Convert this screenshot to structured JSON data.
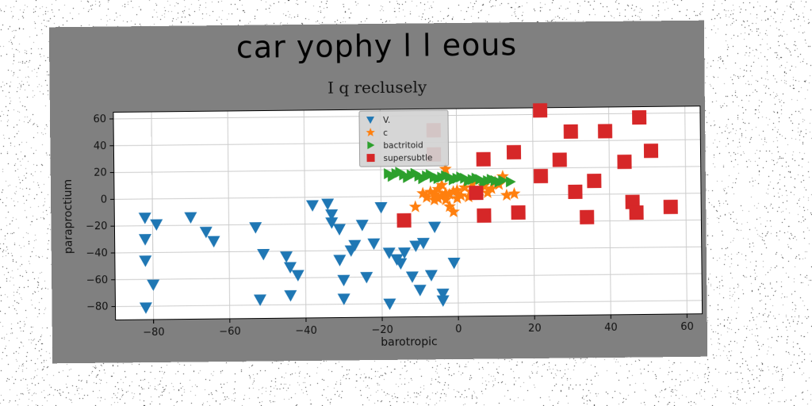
{
  "chart_data": {
    "type": "scatter",
    "title": "car yophy l l eous",
    "subtitle": "I q reclusely",
    "xlabel": "barotropic",
    "ylabel": "paraproctium",
    "xlim": [
      -90,
      64
    ],
    "ylim": [
      -90,
      65
    ],
    "xticks": [
      -80,
      -60,
      -40,
      -20,
      0,
      20,
      40,
      60
    ],
    "yticks": [
      -80,
      -60,
      -40,
      -20,
      0,
      20,
      40,
      60
    ],
    "xtick_labels": [
      "−80",
      "−60",
      "−40",
      "−20",
      "0",
      "20",
      "40",
      "60"
    ],
    "ytick_labels": [
      "−80",
      "−60",
      "−40",
      "−20",
      "0",
      "20",
      "40",
      "60"
    ],
    "grid": true,
    "legend_position": "top-center",
    "series": [
      {
        "name": "V.",
        "marker": "triangle-down",
        "color": "#1f77b4",
        "points": [
          [
            -82,
            -14
          ],
          [
            -79,
            -19
          ],
          [
            -82,
            -30
          ],
          [
            -82,
            -46
          ],
          [
            -80,
            -64
          ],
          [
            -82,
            -81
          ],
          [
            -70,
            -14
          ],
          [
            -66,
            -25
          ],
          [
            -64,
            -32
          ],
          [
            -53,
            -22
          ],
          [
            -52,
            -76
          ],
          [
            -51,
            -42
          ],
          [
            -45,
            -44
          ],
          [
            -44,
            -52
          ],
          [
            -44,
            -73
          ],
          [
            -42,
            -58
          ],
          [
            -38,
            -6
          ],
          [
            -34,
            -5
          ],
          [
            -33,
            -13
          ],
          [
            -33,
            -19
          ],
          [
            -31,
            -24
          ],
          [
            -31,
            -47
          ],
          [
            -30,
            -62
          ],
          [
            -30,
            -76
          ],
          [
            -28,
            -40
          ],
          [
            -27,
            -36
          ],
          [
            -25,
            -21
          ],
          [
            -24,
            -60
          ],
          [
            -22,
            -35
          ],
          [
            -20,
            -8
          ],
          [
            -18,
            -42
          ],
          [
            -18,
            -80
          ],
          [
            -16,
            -47
          ],
          [
            -15,
            -50
          ],
          [
            -14,
            -42
          ],
          [
            -12,
            -60
          ],
          [
            -11,
            -37
          ],
          [
            -10,
            -70
          ],
          [
            -9,
            -35
          ],
          [
            -7,
            -59
          ],
          [
            -6,
            -23
          ],
          [
            -4,
            -73
          ],
          [
            -4,
            -78
          ],
          [
            -1,
            -50
          ]
        ]
      },
      {
        "name": "c",
        "marker": "star",
        "color": "#ff7f0e",
        "points": [
          [
            -11,
            -8
          ],
          [
            -9,
            2
          ],
          [
            -8,
            -1
          ],
          [
            -7,
            3
          ],
          [
            -6,
            1
          ],
          [
            -6,
            -3
          ],
          [
            -5,
            5
          ],
          [
            -5,
            -2
          ],
          [
            -4,
            0
          ],
          [
            -4,
            8
          ],
          [
            -3,
            2
          ],
          [
            -3,
            -3
          ],
          [
            -2,
            1
          ],
          [
            -2,
            -8
          ],
          [
            -1,
            3
          ],
          [
            -1,
            -12
          ],
          [
            0,
            -2
          ],
          [
            0,
            4
          ],
          [
            1,
            0
          ],
          [
            2,
            6
          ],
          [
            3,
            -1
          ],
          [
            4,
            3
          ],
          [
            4,
            9
          ],
          [
            5,
            1
          ],
          [
            6,
            4
          ],
          [
            7,
            7
          ],
          [
            8,
            2
          ],
          [
            9,
            5
          ],
          [
            10,
            10
          ],
          [
            11,
            8
          ],
          [
            12,
            14
          ],
          [
            13,
            0
          ],
          [
            15,
            1
          ],
          [
            -3,
            20
          ]
        ]
      },
      {
        "name": "bactritoid",
        "marker": "triangle-right",
        "color": "#2ca02c",
        "points": [
          [
            -18,
            17
          ],
          [
            -16,
            17
          ],
          [
            -14,
            16
          ],
          [
            -12,
            16
          ],
          [
            -10,
            15
          ],
          [
            -8,
            15
          ],
          [
            -6,
            14
          ],
          [
            -4,
            14
          ],
          [
            -2,
            14
          ],
          [
            0,
            13
          ],
          [
            2,
            13
          ],
          [
            4,
            12
          ],
          [
            6,
            12
          ],
          [
            8,
            11
          ],
          [
            10,
            11
          ],
          [
            12,
            11
          ],
          [
            14,
            10
          ],
          [
            -17,
            15
          ],
          [
            -13,
            14
          ],
          [
            -9,
            13
          ],
          [
            -5,
            13
          ],
          [
            -1,
            12
          ],
          [
            3,
            11
          ],
          [
            7,
            10
          ],
          [
            11,
            10
          ],
          [
            -15,
            18
          ],
          [
            -11,
            17
          ],
          [
            -7,
            16
          ],
          [
            -3,
            15
          ],
          [
            1,
            14
          ],
          [
            5,
            13
          ],
          [
            9,
            12
          ]
        ]
      },
      {
        "name": "supersubtle",
        "marker": "square",
        "color": "#d62728",
        "points": [
          [
            -6,
            49
          ],
          [
            -6,
            31
          ],
          [
            -14,
            -18
          ],
          [
            5,
            2
          ],
          [
            7,
            -15
          ],
          [
            7,
            27
          ],
          [
            15,
            32
          ],
          [
            16,
            -13
          ],
          [
            22,
            14
          ],
          [
            22,
            63
          ],
          [
            27,
            26
          ],
          [
            30,
            47
          ],
          [
            31,
            2
          ],
          [
            34,
            -17
          ],
          [
            36,
            10
          ],
          [
            39,
            47
          ],
          [
            44,
            24
          ],
          [
            46,
            -6
          ],
          [
            47,
            -14
          ],
          [
            48,
            57
          ],
          [
            51,
            32
          ],
          [
            56,
            -10
          ]
        ]
      }
    ]
  },
  "colors": {
    "figure_background": "#808080",
    "plot_background": "#ffffff",
    "grid": "#cccccc",
    "legend_background": "#d3d3d3"
  }
}
